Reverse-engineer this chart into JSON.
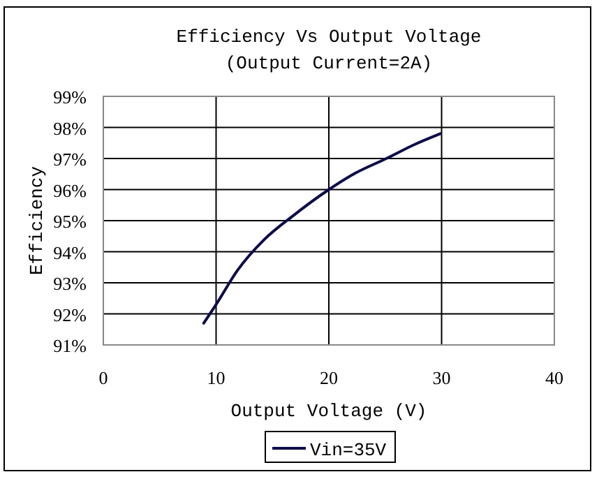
{
  "chart_data": {
    "type": "line",
    "title": "Efficiency Vs Output Voltage",
    "subtitle": "(Output Current=2A)",
    "xlabel": "Output Voltage (V)",
    "ylabel": "Efficiency",
    "xlim": [
      0,
      40
    ],
    "xticks": [
      0,
      10,
      20,
      30,
      40
    ],
    "ylim": [
      91,
      99
    ],
    "yticks": [
      {
        "value": 91,
        "label": "91%"
      },
      {
        "value": 92,
        "label": "92%"
      },
      {
        "value": 93,
        "label": "93%"
      },
      {
        "value": 94,
        "label": "94%"
      },
      {
        "value": 95,
        "label": "95%"
      },
      {
        "value": 96,
        "label": "96%"
      },
      {
        "value": 97,
        "label": "97%"
      },
      {
        "value": 98,
        "label": "98%"
      },
      {
        "value": 99,
        "label": "99%"
      }
    ],
    "grid": true,
    "legend": "bottom",
    "marker": "none",
    "line_style": "solid",
    "series": [
      {
        "name": "Vin=35V",
        "color": "#0d0d4a",
        "x": [
          8.9,
          10,
          11.9,
          14.3,
          16.8,
          20,
          22.2,
          25.1,
          27.6,
          29.9
        ],
        "values": [
          91.7,
          92.3,
          93.4,
          94.4,
          95.15,
          96,
          96.5,
          97.0,
          97.45,
          97.8
        ]
      }
    ]
  }
}
